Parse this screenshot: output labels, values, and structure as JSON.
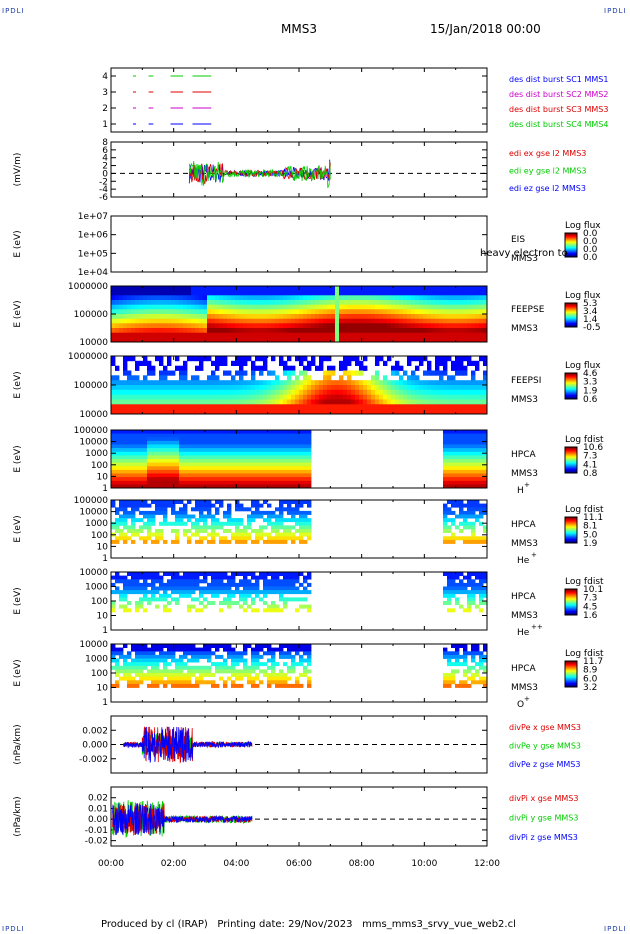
{
  "corner_label": "IPDLI",
  "header": {
    "title": "MMS3",
    "date": "15/Jan/2018 00:00"
  },
  "footer": {
    "produced_by": "Produced by cl (IRAP)",
    "printing_date": "Printing date: 29/Nov/2023",
    "filename": "mms_mms3_srvy_vue_web2.cl"
  },
  "time_ticks": [
    "00:00",
    "02:00",
    "04:00",
    "06:00",
    "08:00",
    "10:00",
    "12:00"
  ],
  "chart_data": [
    {
      "type": "line",
      "name": "burst",
      "ylim": [
        0.5,
        4.5
      ],
      "yticks": [
        "1",
        "2",
        "3",
        "4"
      ],
      "legend": [
        {
          "label": "des dist burst SC1 MMS1",
          "color": "#0000ff"
        },
        {
          "label": "des dist burst SC2 MMS2",
          "color": "#cc00cc"
        },
        {
          "label": "des dist burst SC3 MMS3",
          "color": "#dd0000"
        },
        {
          "label": "des dist burst SC4 MMS4",
          "color": "#00cc00"
        }
      ]
    },
    {
      "type": "line",
      "name": "edi",
      "ylabel": "(mV/m)",
      "ylim": [
        -6,
        8
      ],
      "yticks": [
        "8",
        "6",
        "4",
        "2",
        "0",
        "-2",
        "-4",
        "-6"
      ],
      "legend": [
        {
          "label": "edi ex gse l2 MMS3",
          "color": "#dd0000"
        },
        {
          "label": "edi ey gse l2 MMS3",
          "color": "#00cc00"
        },
        {
          "label": "edi ez gse l2 MMS3",
          "color": "#0000ff"
        }
      ]
    },
    {
      "type": "heatmap",
      "name": "eis",
      "ylabel": "E (eV)",
      "yticks": [
        "1e+07",
        "1e+06",
        "1e+05",
        "1e+04"
      ],
      "instrument": [
        "EIS",
        "MMS3"
      ],
      "overlay_text": "heavy electron to",
      "colorbar": {
        "title": "Log flux",
        "ticks": [
          "0.0",
          "0.0",
          "0.0",
          "0.0"
        ]
      }
    },
    {
      "type": "heatmap",
      "name": "feepse",
      "ylabel": "E (eV)",
      "yticks": [
        "1000000",
        "100000",
        "10000"
      ],
      "instrument": [
        "FEEPSE",
        "MMS3"
      ],
      "colorbar": {
        "title": "Log flux",
        "ticks": [
          "5.3",
          "3.4",
          "1.4",
          "-0.5"
        ]
      }
    },
    {
      "type": "heatmap",
      "name": "feepsi",
      "ylabel": "E (eV)",
      "yticks": [
        "1000000",
        "100000",
        "10000"
      ],
      "instrument": [
        "FEEPSI",
        "MMS3"
      ],
      "colorbar": {
        "title": "Log flux",
        "ticks": [
          "4.6",
          "3.3",
          "1.9",
          "0.6"
        ]
      }
    },
    {
      "type": "heatmap",
      "name": "hpca_h",
      "ylabel": "E (eV)",
      "yticks": [
        "100000",
        "10000",
        "1000",
        "100",
        "10",
        "1"
      ],
      "instrument": [
        "HPCA",
        "MMS3"
      ],
      "species": "H",
      "charge": "+",
      "colorbar": {
        "title": "Log fdist",
        "ticks": [
          "10.6",
          "7.3",
          "4.1",
          "0.8"
        ]
      }
    },
    {
      "type": "heatmap",
      "name": "hpca_he",
      "ylabel": "E (eV)",
      "yticks": [
        "100000",
        "10000",
        "1000",
        "100",
        "10",
        "1"
      ],
      "instrument": [
        "HPCA",
        "MMS3"
      ],
      "species": "He",
      "charge": "+",
      "colorbar": {
        "title": "Log fdist",
        "ticks": [
          "11.1",
          "8.1",
          "5.0",
          "1.9"
        ]
      }
    },
    {
      "type": "heatmap",
      "name": "hpca_hepp",
      "ylabel": "E (eV)",
      "yticks": [
        "10000",
        "1000",
        "100",
        "10",
        "1"
      ],
      "instrument": [
        "HPCA",
        "MMS3"
      ],
      "species": "He",
      "charge": "++",
      "colorbar": {
        "title": "Log fdist",
        "ticks": [
          "10.1",
          "7.3",
          "4.5",
          "1.6"
        ]
      }
    },
    {
      "type": "heatmap",
      "name": "hpca_o",
      "ylabel": "E (eV)",
      "yticks": [
        "10000",
        "1000",
        "100",
        "10",
        "1"
      ],
      "instrument": [
        "HPCA",
        "MMS3"
      ],
      "species": "O",
      "charge": "+",
      "colorbar": {
        "title": "Log fdist",
        "ticks": [
          "11.7",
          "8.9",
          "6.0",
          "3.2"
        ]
      }
    },
    {
      "type": "line",
      "name": "divpe",
      "ylabel": "(nPa/km)",
      "ylim": [
        -0.004,
        0.004
      ],
      "yticks": [
        "0.002",
        "0.000",
        "-0.002"
      ],
      "legend": [
        {
          "label": "divPe x gse MMS3",
          "color": "#dd0000"
        },
        {
          "label": "divPe y gse MMS3",
          "color": "#00cc00"
        },
        {
          "label": "divPe z gse MMS3",
          "color": "#0000ff"
        }
      ]
    },
    {
      "type": "line",
      "name": "divpi",
      "ylabel": "(nPa/km)",
      "ylim": [
        -0.025,
        0.03
      ],
      "yticks": [
        "0.02",
        "0.01",
        "0.00",
        "-0.01",
        "-0.02"
      ],
      "legend": [
        {
          "label": "divPi x gse MMS3",
          "color": "#dd0000"
        },
        {
          "label": "divPi y gse MMS3",
          "color": "#00cc00"
        },
        {
          "label": "divPi z gse MMS3",
          "color": "#0000ff"
        }
      ]
    }
  ]
}
